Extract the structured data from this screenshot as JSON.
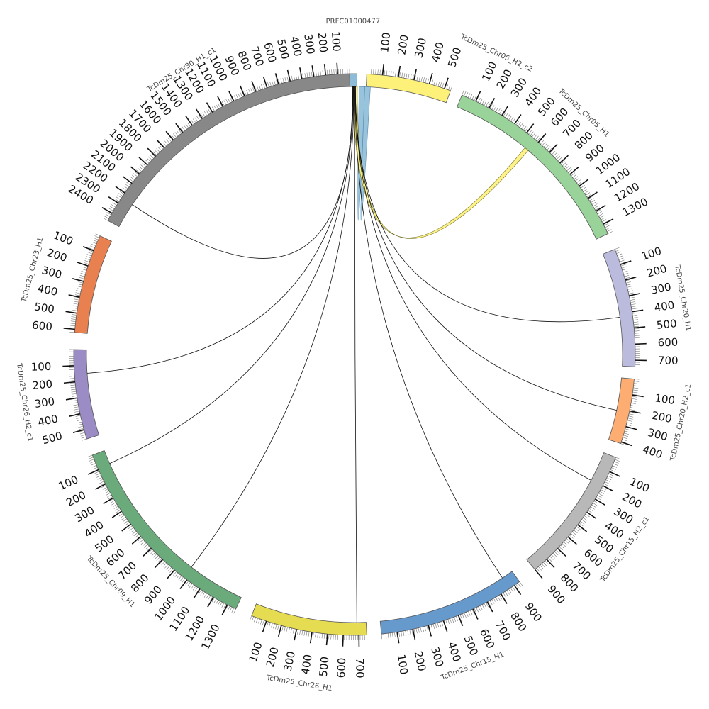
{
  "diagram": {
    "type": "circos",
    "segments": [
      {
        "name": "PRFC01000477",
        "color": "#8cbcd8",
        "ticks": [],
        "length": 20
      },
      {
        "name": "TcDm25_Chr05_H2_c2",
        "color": "#fdf17a",
        "ticks": [
          "100",
          "200",
          "300",
          "400",
          "500"
        ],
        "length": 540
      },
      {
        "name": "TcDm25_Chr05_H1",
        "color": "#99d39a",
        "ticks": [
          "100",
          "200",
          "300",
          "400",
          "500",
          "600",
          "700",
          "800",
          "900",
          "1000",
          "1100",
          "1200",
          "1300"
        ],
        "length": 1370
      },
      {
        "name": "TcDm25_Chr20_H1",
        "color": "#bbbbdd",
        "ticks": [
          "100",
          "200",
          "300",
          "400",
          "500",
          "600",
          "700"
        ],
        "length": 740
      },
      {
        "name": "TcDm25_Chr20_H2_c1",
        "color": "#fdad72",
        "ticks": [
          "100",
          "200",
          "300",
          "400"
        ],
        "length": 410
      },
      {
        "name": "TcDm25_Chr15_H2_c1",
        "color": "#b8b8b8",
        "ticks": [
          "100",
          "200",
          "300",
          "400",
          "500",
          "600",
          "700",
          "800",
          "900"
        ],
        "length": 900
      },
      {
        "name": "TcDm25_Chr15_H1",
        "color": "#6699cc",
        "ticks": [
          "100",
          "200",
          "300",
          "400",
          "500",
          "600",
          "700",
          "800",
          "900"
        ],
        "length": 940
      },
      {
        "name": "TcDm25_Chr26_H1",
        "color": "#e6dc52",
        "ticks": [
          "100",
          "200",
          "300",
          "400",
          "500",
          "600",
          "700"
        ],
        "length": 750
      },
      {
        "name": "TcDm25_Chr09_H1",
        "color": "#6aaa7b",
        "ticks": [
          "100",
          "200",
          "300",
          "400",
          "500",
          "600",
          "700",
          "800",
          "900",
          "1000",
          "1100",
          "1200",
          "1300"
        ],
        "length": 1360
      },
      {
        "name": "TcDm25_Chr26_H2_c1",
        "color": "#9b8cc5",
        "ticks": [
          "100",
          "200",
          "300",
          "400",
          "500"
        ],
        "length": 560
      },
      {
        "name": "TcDm25_Chr23_H1",
        "color": "#e88050",
        "ticks": [
          "100",
          "200",
          "300",
          "400",
          "500",
          "600"
        ],
        "length": 620
      },
      {
        "name": "TcDm25_Chr30_H1_c1",
        "color": "#888888",
        "ticks": [
          "100",
          "200",
          "300",
          "400",
          "500",
          "600",
          "700",
          "800",
          "900",
          "1000",
          "1100",
          "1200",
          "1300",
          "1400",
          "1500",
          "1600",
          "1700",
          "1800",
          "1900",
          "2000",
          "2100",
          "2200",
          "2300",
          "2400"
        ],
        "length": 2470
      }
    ]
  }
}
